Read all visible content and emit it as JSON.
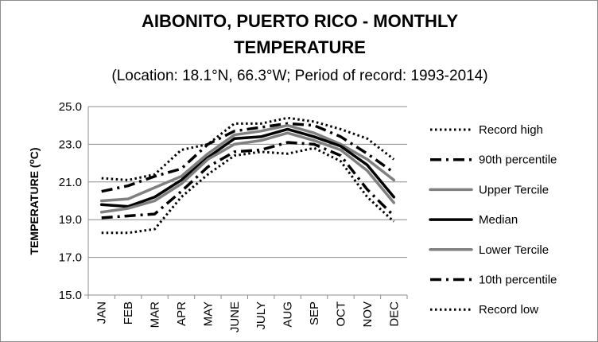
{
  "chart_data": {
    "type": "line",
    "title_line1": "AIBONITO, PUERTO RICO - MONTHLY",
    "title_line2": "TEMPERATURE",
    "subtitle": "(Location: 18.1°N, 66.3°W; Period of record: 1993-2014)",
    "xlabel": "",
    "ylabel_main": "TEMPERATURE (",
    "ylabel_sup": "o",
    "ylabel_end": "C)",
    "ylim": [
      15.0,
      25.0
    ],
    "yticks": [
      "15.0",
      "17.0",
      "19.0",
      "21.0",
      "23.0",
      "25.0"
    ],
    "categories": [
      "JAN",
      "FEB",
      "MAR",
      "APR",
      "MAY",
      "JUNE",
      "JULY",
      "AUG",
      "SEP",
      "OCT",
      "NOV",
      "DEC"
    ],
    "grid": true,
    "legend_position": "right",
    "series": [
      {
        "name": "Record high",
        "style": "dotted",
        "color": "#000000",
        "values": [
          21.2,
          21.1,
          21.4,
          22.7,
          23.0,
          24.1,
          24.1,
          24.4,
          24.2,
          23.8,
          23.3,
          22.2
        ]
      },
      {
        "name": "90th percentile",
        "style": "dashdot",
        "color": "#000000",
        "values": [
          20.5,
          20.8,
          21.3,
          21.7,
          23.0,
          23.7,
          23.9,
          24.1,
          24.0,
          23.4,
          22.5,
          21.5
        ]
      },
      {
        "name": "Upper Tercile",
        "style": "solid-gray",
        "color": "#808080",
        "values": [
          20.0,
          20.1,
          20.7,
          21.3,
          22.5,
          23.5,
          23.7,
          24.0,
          23.6,
          23.0,
          22.2,
          21.1
        ]
      },
      {
        "name": "Median",
        "style": "solid-black",
        "color": "#000000",
        "values": [
          19.8,
          19.7,
          20.2,
          21.1,
          22.3,
          23.3,
          23.4,
          23.8,
          23.4,
          22.9,
          21.9,
          20.2
        ]
      },
      {
        "name": "Lower Tercile",
        "style": "solid-gray",
        "color": "#808080",
        "values": [
          19.4,
          19.6,
          20.0,
          20.9,
          22.2,
          23.0,
          23.2,
          23.6,
          23.2,
          22.7,
          21.6,
          19.9
        ]
      },
      {
        "name": "10th percentile",
        "style": "dashdot",
        "color": "#000000",
        "values": [
          19.1,
          19.2,
          19.3,
          20.5,
          21.8,
          22.6,
          22.7,
          23.1,
          23.0,
          22.4,
          20.6,
          19.2
        ]
      },
      {
        "name": "Record low",
        "style": "dotted",
        "color": "#000000",
        "values": [
          18.3,
          18.3,
          18.5,
          20.2,
          21.4,
          22.4,
          22.6,
          22.5,
          22.8,
          22.1,
          20.2,
          18.9
        ]
      }
    ]
  }
}
